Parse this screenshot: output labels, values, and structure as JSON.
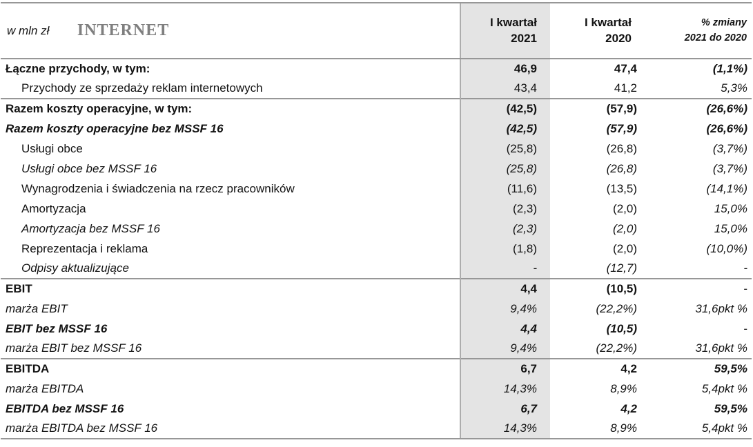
{
  "table": {
    "unit_label": "w mln zł",
    "title": "INTERNET",
    "columns": {
      "c2021": [
        "I kwartał",
        "2021"
      ],
      "c2020": [
        "I kwartał",
        "2020"
      ],
      "change": [
        "% zmiany",
        "2021 do 2020"
      ]
    },
    "rows": [
      {
        "label": "Łączne przychody, w tym:",
        "indent": false,
        "ls": "bold",
        "vs": "bold",
        "cs": "bolditalic",
        "v1": "46,9",
        "v2": "47,4",
        "chg": "(1,1%)",
        "sep": false
      },
      {
        "label": "Przychody ze sprzedaży reklam internetowych",
        "indent": true,
        "ls": "normal",
        "vs": "normal",
        "cs": "italic",
        "v1": "43,4",
        "v2": "41,2",
        "chg": "5,3%",
        "sep": false
      },
      {
        "label": "Razem koszty operacyjne, w tym:",
        "indent": false,
        "ls": "bold",
        "vs": "bold",
        "cs": "bolditalic",
        "v1": "(42,5)",
        "v2": "(57,9)",
        "chg": "(26,6%)",
        "sep": true
      },
      {
        "label": "Razem koszty operacyjne bez MSSF 16",
        "indent": false,
        "ls": "bolditalic",
        "vs": "bolditalic",
        "cs": "bolditalic",
        "v1": "(42,5)",
        "v2": "(57,9)",
        "chg": "(26,6%)",
        "sep": false
      },
      {
        "label": "Usługi obce",
        "indent": true,
        "ls": "normal",
        "vs": "normal",
        "cs": "italic",
        "v1": "(25,8)",
        "v2": "(26,8)",
        "chg": "(3,7%)",
        "sep": false
      },
      {
        "label": "Usługi obce bez MSSF 16",
        "indent": true,
        "ls": "italic",
        "vs": "italic",
        "cs": "italic",
        "v1": "(25,8)",
        "v2": "(26,8)",
        "chg": "(3,7%)",
        "sep": false
      },
      {
        "label": "Wynagrodzenia i świadczenia na rzecz pracowników",
        "indent": true,
        "ls": "normal",
        "vs": "normal",
        "cs": "italic",
        "v1": "(11,6)",
        "v2": "(13,5)",
        "chg": "(14,1%)",
        "sep": false
      },
      {
        "label": "Amortyzacja",
        "indent": true,
        "ls": "normal",
        "vs": "normal",
        "cs": "italic",
        "v1": "(2,3)",
        "v2": "(2,0)",
        "chg": "15,0%",
        "sep": false
      },
      {
        "label": "Amortyzacja bez MSSF 16",
        "indent": true,
        "ls": "italic",
        "vs": "italic",
        "cs": "italic",
        "v1": "(2,3)",
        "v2": "(2,0)",
        "chg": "15,0%",
        "sep": false
      },
      {
        "label": "Reprezentacja i reklama",
        "indent": true,
        "ls": "normal",
        "vs": "normal",
        "cs": "italic",
        "v1": "(1,8)",
        "v2": "(2,0)",
        "chg": "(10,0%)",
        "sep": false
      },
      {
        "label": "Odpisy aktualizujące",
        "indent": true,
        "ls": "italic",
        "vs": "italic",
        "cs": "italic",
        "v1": "-",
        "v2": "(12,7)",
        "chg": "-",
        "sep": false
      },
      {
        "label": "EBIT",
        "indent": false,
        "ls": "bold",
        "vs": "bold",
        "cs": "normal",
        "v1": "4,4",
        "v2": "(10,5)",
        "chg": "-",
        "sep": true
      },
      {
        "label": "marża EBIT",
        "indent": false,
        "ls": "italic",
        "vs": "italic",
        "cs": "italic",
        "v1": "9,4%",
        "v2": "(22,2%)",
        "chg": "31,6pkt %",
        "sep": false
      },
      {
        "label": "EBIT bez MSSF 16",
        "indent": false,
        "ls": "bolditalic",
        "vs": "bolditalic",
        "cs": "normal",
        "v1": "4,4",
        "v2": "(10,5)",
        "chg": "-",
        "sep": false
      },
      {
        "label": "marża EBIT bez MSSF 16",
        "indent": false,
        "ls": "italic",
        "vs": "italic",
        "cs": "italic",
        "v1": "9,4%",
        "v2": "(22,2%)",
        "chg": "31,6pkt %",
        "sep": false
      },
      {
        "label": "EBITDA",
        "indent": false,
        "ls": "bold",
        "vs": "bold",
        "cs": "bolditalic",
        "v1": "6,7",
        "v2": "4,2",
        "chg": "59,5%",
        "sep": true
      },
      {
        "label": "marża EBITDA",
        "indent": false,
        "ls": "italic",
        "vs": "italic",
        "cs": "italic",
        "v1": "14,3%",
        "v2": "8,9%",
        "chg": "5,4pkt %",
        "sep": false
      },
      {
        "label": "EBITDA bez MSSF 16",
        "indent": false,
        "ls": "bolditalic",
        "vs": "bolditalic",
        "cs": "bolditalic",
        "v1": "6,7",
        "v2": "4,2",
        "chg": "59,5%",
        "sep": false
      },
      {
        "label": "marża EBITDA bez MSSF 16",
        "indent": false,
        "ls": "italic",
        "vs": "italic",
        "cs": "italic",
        "v1": "14,3%",
        "v2": "8,9%",
        "chg": "5,4pkt %",
        "sep": false
      }
    ]
  },
  "colors": {
    "column_2021_background": "#e4e4e4",
    "grid_line": "#979797",
    "title_gray": "#7f7f7f",
    "text": "#121212"
  }
}
